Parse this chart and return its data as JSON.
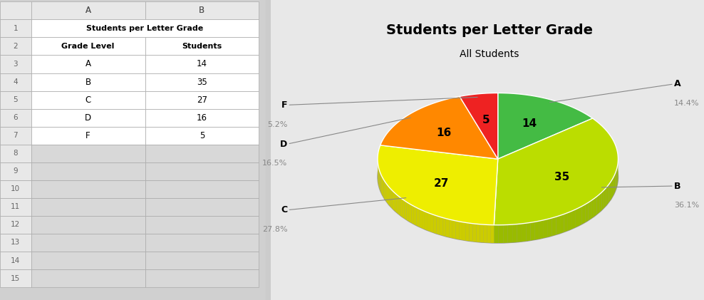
{
  "title": "Students per Letter Grade",
  "subtitle": "All Students",
  "grades": [
    "A",
    "B",
    "C",
    "D",
    "F"
  ],
  "values": [
    14,
    35,
    27,
    16,
    5
  ],
  "percentages": [
    "14.4%",
    "36.1%",
    "27.8%",
    "16.5%",
    "5.2%"
  ],
  "colors": [
    "#44bb44",
    "#bbdd00",
    "#eeee00",
    "#ff8800",
    "#ee2222"
  ],
  "dark_colors": [
    "#338833",
    "#99bb00",
    "#cccc00",
    "#cc6600",
    "#cc0000"
  ],
  "table_header": "Students per Letter Grade",
  "col1_header": "Grade Level",
  "col2_header": "Students",
  "bg_color": "#ffffff",
  "table_bg": "#f0f0f0",
  "cell_bg": "#ffffff",
  "grid_color": "#cccccc",
  "row_numbers": [
    1,
    2,
    3,
    4,
    5,
    6,
    7,
    8,
    9,
    10,
    11,
    12,
    13,
    14,
    15
  ],
  "col_letters": [
    "A",
    "B"
  ],
  "spreadsheet_bg": "#d0d0d0"
}
